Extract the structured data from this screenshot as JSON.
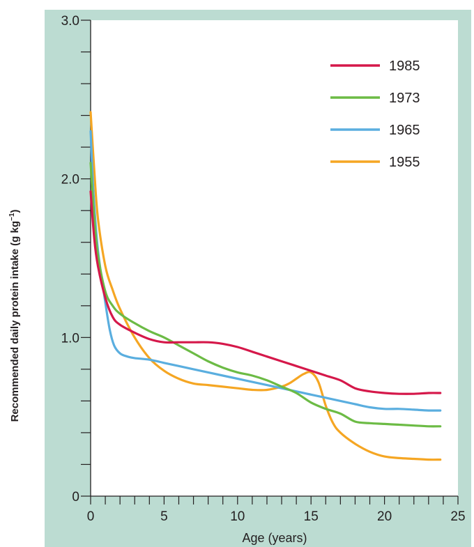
{
  "chart_data": {
    "type": "line",
    "xlabel": "Age (years)",
    "ylabel": {
      "main": "Recommended daily protein intake (g kg",
      "sup": "−1",
      "tail": ")"
    },
    "xlim": [
      0,
      25
    ],
    "ylim": [
      0,
      3.0
    ],
    "x_ticks": [
      {
        "value": 0,
        "label": "0"
      },
      {
        "value": 5,
        "label": "5"
      },
      {
        "value": 10,
        "label": "10"
      },
      {
        "value": 15,
        "label": "15"
      },
      {
        "value": 20,
        "label": "20"
      },
      {
        "value": 25,
        "label": "25"
      }
    ],
    "x_minor_step": 1,
    "y_ticks": [
      {
        "value": 0,
        "label": "0"
      },
      {
        "value": 1.0,
        "label": "1.0"
      },
      {
        "value": 2.0,
        "label": "2.0"
      },
      {
        "value": 3.0,
        "label": "3.0"
      }
    ],
    "y_minor_step": 0.2,
    "grid": false,
    "legend_position": "top-right",
    "colors": {
      "frame": "#bcdcd2",
      "plot_bg": "#ffffff",
      "axis": "#231f20"
    },
    "series": [
      {
        "name": "1985",
        "color": "#d5184a",
        "x": [
          0,
          0.25,
          0.5,
          1,
          1.5,
          2,
          3,
          4,
          5,
          6,
          7,
          8,
          9,
          10,
          11,
          12,
          13,
          14,
          15,
          16,
          17,
          18,
          19,
          20,
          21,
          22,
          23,
          23.8
        ],
        "y": [
          1.92,
          1.62,
          1.45,
          1.25,
          1.13,
          1.08,
          1.03,
          0.99,
          0.97,
          0.97,
          0.97,
          0.97,
          0.96,
          0.94,
          0.91,
          0.88,
          0.85,
          0.82,
          0.79,
          0.76,
          0.73,
          0.68,
          0.66,
          0.65,
          0.645,
          0.645,
          0.65,
          0.65
        ]
      },
      {
        "name": "1973",
        "color": "#6cbb45",
        "x": [
          0,
          0.25,
          0.5,
          1,
          1.5,
          2,
          3,
          4,
          5,
          6,
          7,
          8,
          9,
          10,
          11,
          12,
          13,
          14,
          15,
          16,
          17,
          18,
          19,
          20,
          21,
          22,
          23,
          23.8
        ],
        "y": [
          2.1,
          1.75,
          1.52,
          1.29,
          1.2,
          1.15,
          1.09,
          1.04,
          1.0,
          0.95,
          0.9,
          0.85,
          0.81,
          0.78,
          0.76,
          0.73,
          0.69,
          0.65,
          0.59,
          0.55,
          0.52,
          0.47,
          0.46,
          0.455,
          0.45,
          0.445,
          0.44,
          0.44
        ]
      },
      {
        "name": "1965",
        "color": "#5aaedf",
        "x": [
          0,
          0.2,
          0.5,
          1,
          1.3,
          1.6,
          2,
          2.5,
          3,
          4,
          5,
          6,
          7,
          8,
          9,
          10,
          11,
          12,
          13,
          14,
          15,
          16,
          17,
          18,
          19,
          20,
          21,
          22,
          23,
          23.8
        ],
        "y": [
          2.3,
          1.9,
          1.55,
          1.22,
          1.05,
          0.95,
          0.9,
          0.88,
          0.87,
          0.86,
          0.84,
          0.82,
          0.8,
          0.78,
          0.76,
          0.74,
          0.72,
          0.7,
          0.68,
          0.66,
          0.64,
          0.62,
          0.6,
          0.58,
          0.56,
          0.55,
          0.55,
          0.545,
          0.54,
          0.54
        ]
      },
      {
        "name": "1955",
        "color": "#f5a623",
        "x": [
          0,
          0.25,
          0.5,
          1,
          1.5,
          2,
          3,
          4,
          5,
          6,
          7,
          8,
          9,
          10,
          11,
          12,
          13,
          13.5,
          14,
          14.5,
          15,
          15.5,
          16,
          16.5,
          17,
          18,
          19,
          20,
          21,
          22,
          23,
          23.8
        ],
        "y": [
          2.42,
          2.05,
          1.75,
          1.45,
          1.3,
          1.18,
          1.0,
          0.87,
          0.79,
          0.74,
          0.71,
          0.7,
          0.69,
          0.68,
          0.67,
          0.67,
          0.69,
          0.71,
          0.74,
          0.77,
          0.78,
          0.72,
          0.57,
          0.46,
          0.4,
          0.33,
          0.28,
          0.25,
          0.24,
          0.235,
          0.23,
          0.23
        ]
      }
    ]
  }
}
